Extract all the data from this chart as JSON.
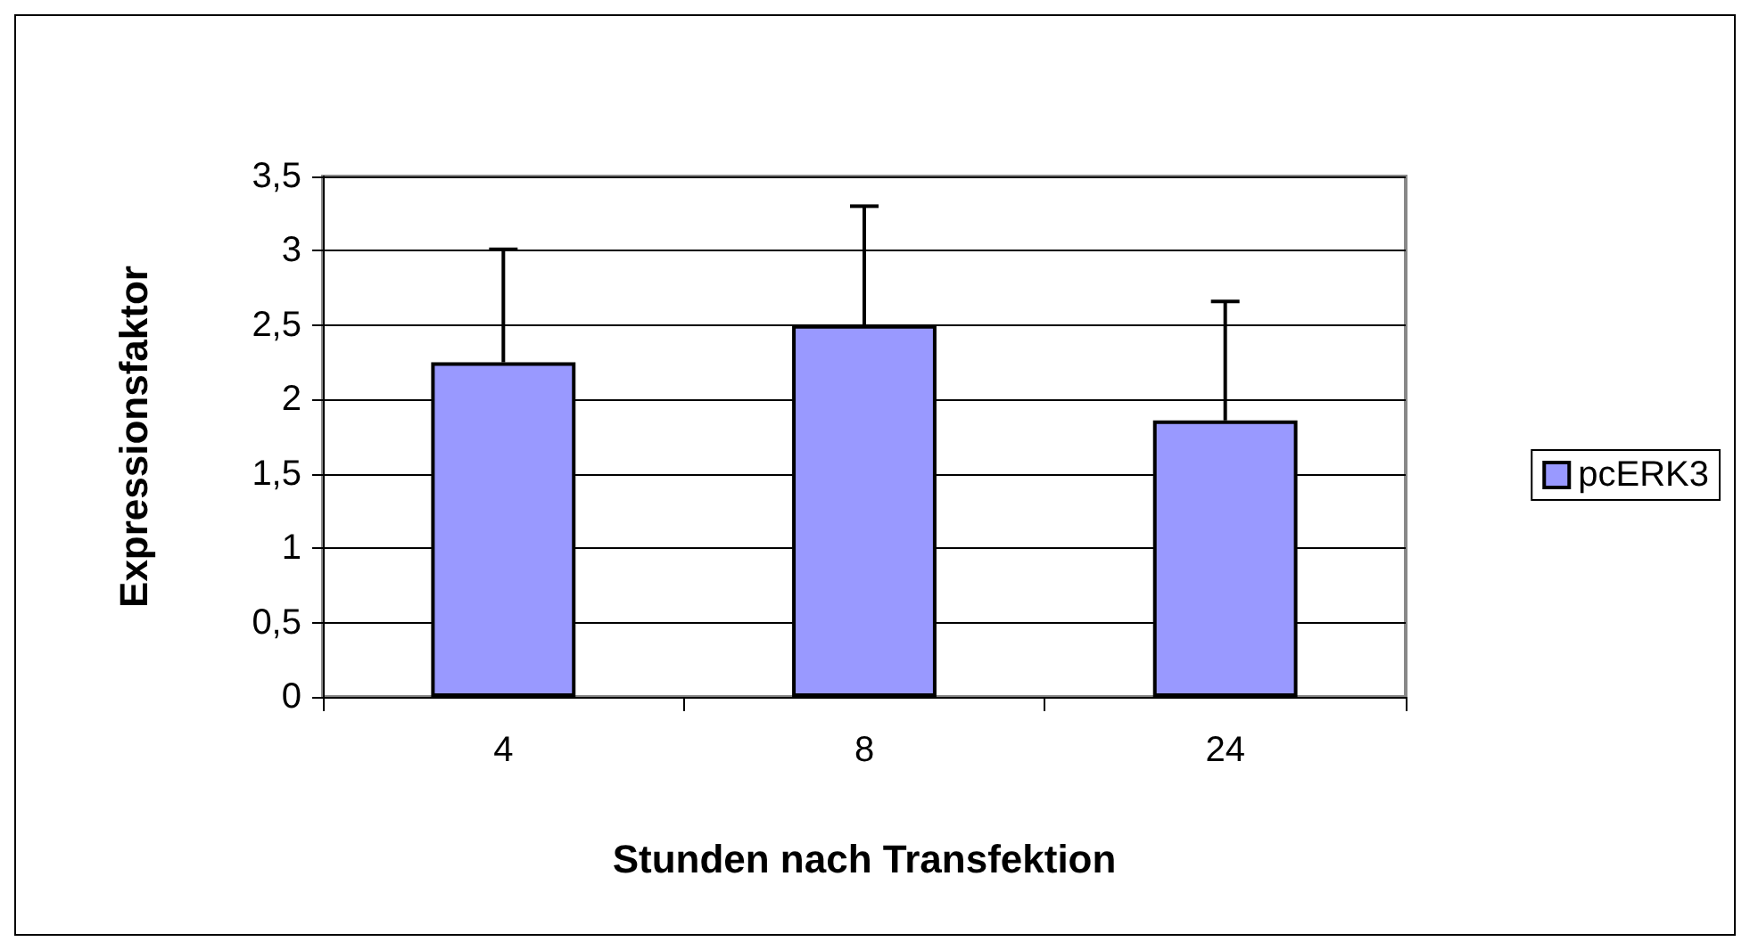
{
  "chart_data": {
    "type": "bar",
    "xlabel": "Stunden nach Transfektion",
    "ylabel": "Expressionsfaktor",
    "categories": [
      "4",
      "8",
      "24"
    ],
    "series": [
      {
        "name": "pcERK3",
        "color": "#9999ff",
        "values": [
          2.25,
          2.5,
          1.86
        ],
        "errors": [
          [
            2.25,
            3.01
          ],
          [
            2.5,
            3.3
          ],
          [
            1.86,
            2.66
          ]
        ]
      }
    ],
    "ylim": [
      0,
      3.5
    ],
    "yticks": [
      {
        "value": 0,
        "label": "0"
      },
      {
        "value": 0.5,
        "label": "0,5"
      },
      {
        "value": 1,
        "label": "1"
      },
      {
        "value": 1.5,
        "label": "1,5"
      },
      {
        "value": 2,
        "label": "2"
      },
      {
        "value": 2.5,
        "label": "2,5"
      },
      {
        "value": 3,
        "label": "3"
      },
      {
        "value": 3.5,
        "label": "3,5"
      }
    ],
    "grid": "y",
    "legend": "right"
  }
}
